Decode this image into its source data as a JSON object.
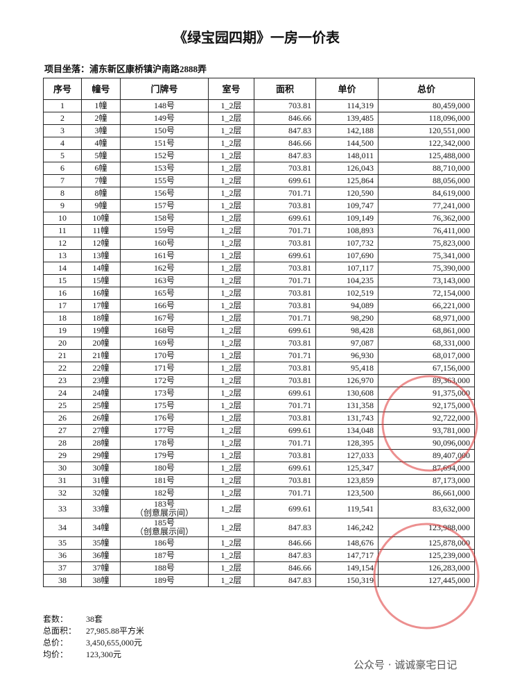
{
  "title": "《绿宝园四期》一房一价表",
  "location": {
    "label": "项目坐落：",
    "value": "浦东新区康桥镇沪南路2888弄"
  },
  "table": {
    "header": [
      "序号",
      "幢号",
      "门牌号",
      "室号",
      "面积",
      "单价",
      "总价"
    ],
    "rows": [
      [
        "1",
        "1幢",
        "148号",
        "1_2层",
        "703.81",
        "114,319",
        "80,459,000"
      ],
      [
        "2",
        "2幢",
        "149号",
        "1_2层",
        "846.66",
        "139,485",
        "118,096,000"
      ],
      [
        "3",
        "3幢",
        "150号",
        "1_2层",
        "847.83",
        "142,188",
        "120,551,000"
      ],
      [
        "4",
        "4幢",
        "151号",
        "1_2层",
        "846.66",
        "144,500",
        "122,342,000"
      ],
      [
        "5",
        "5幢",
        "152号",
        "1_2层",
        "847.83",
        "148,011",
        "125,488,000"
      ],
      [
        "6",
        "6幢",
        "153号",
        "1_2层",
        "703.81",
        "126,043",
        "88,710,000"
      ],
      [
        "7",
        "7幢",
        "155号",
        "1_2层",
        "699.61",
        "125,864",
        "88,056,000"
      ],
      [
        "8",
        "8幢",
        "156号",
        "1_2层",
        "701.71",
        "120,590",
        "84,619,000"
      ],
      [
        "9",
        "9幢",
        "157号",
        "1_2层",
        "703.81",
        "109,747",
        "77,241,000"
      ],
      [
        "10",
        "10幢",
        "158号",
        "1_2层",
        "699.61",
        "109,149",
        "76,362,000"
      ],
      [
        "11",
        "11幢",
        "159号",
        "1_2层",
        "701.71",
        "108,893",
        "76,411,000"
      ],
      [
        "12",
        "12幢",
        "160号",
        "1_2层",
        "703.81",
        "107,732",
        "75,823,000"
      ],
      [
        "13",
        "13幢",
        "161号",
        "1_2层",
        "699.61",
        "107,690",
        "75,341,000"
      ],
      [
        "14",
        "14幢",
        "162号",
        "1_2层",
        "703.81",
        "107,117",
        "75,390,000"
      ],
      [
        "15",
        "15幢",
        "163号",
        "1_2层",
        "701.71",
        "104,235",
        "73,143,000"
      ],
      [
        "16",
        "16幢",
        "165号",
        "1_2层",
        "703.81",
        "102,519",
        "72,154,000"
      ],
      [
        "17",
        "17幢",
        "166号",
        "1_2层",
        "703.81",
        "94,089",
        "66,221,000"
      ],
      [
        "18",
        "18幢",
        "167号",
        "1_2层",
        "701.71",
        "98,290",
        "68,971,000"
      ],
      [
        "19",
        "19幢",
        "168号",
        "1_2层",
        "699.61",
        "98,428",
        "68,861,000"
      ],
      [
        "20",
        "20幢",
        "169号",
        "1_2层",
        "703.81",
        "97,087",
        "68,331,000"
      ],
      [
        "21",
        "21幢",
        "170号",
        "1_2层",
        "701.71",
        "96,930",
        "68,017,000"
      ],
      [
        "22",
        "22幢",
        "171号",
        "1_2层",
        "703.81",
        "95,418",
        "67,156,000"
      ],
      [
        "23",
        "23幢",
        "172号",
        "1_2层",
        "703.81",
        "126,970",
        "89,363,000"
      ],
      [
        "24",
        "24幢",
        "173号",
        "1_2层",
        "699.61",
        "130,608",
        "91,375,000"
      ],
      [
        "25",
        "25幢",
        "175号",
        "1_2层",
        "701.71",
        "131,358",
        "92,175,000"
      ],
      [
        "26",
        "26幢",
        "176号",
        "1_2层",
        "703.81",
        "131,743",
        "92,722,000"
      ],
      [
        "27",
        "27幢",
        "177号",
        "1_2层",
        "699.61",
        "134,048",
        "93,781,000"
      ],
      [
        "28",
        "28幢",
        "178号",
        "1_2层",
        "701.71",
        "128,395",
        "90,096,000"
      ],
      [
        "29",
        "29幢",
        "179号",
        "1_2层",
        "703.81",
        "127,033",
        "89,407,000"
      ],
      [
        "30",
        "30幢",
        "180号",
        "1_2层",
        "699.61",
        "125,347",
        "87,694,000"
      ],
      [
        "31",
        "31幢",
        "181号",
        "1_2层",
        "703.81",
        "123,859",
        "87,173,000"
      ],
      [
        "32",
        "32幢",
        "182号",
        "1_2层",
        "701.71",
        "123,500",
        "86,661,000"
      ],
      [
        "33",
        "33幢",
        [
          "183号",
          "（创意展示间）"
        ],
        "1_2层",
        "699.61",
        "119,541",
        "83,632,000"
      ],
      [
        "34",
        "34幢",
        [
          "185号",
          "（创意展示间）"
        ],
        "1_2层",
        "847.83",
        "146,242",
        "123,988,000"
      ],
      [
        "35",
        "35幢",
        "186号",
        "1_2层",
        "846.66",
        "148,676",
        "125,878,000"
      ],
      [
        "36",
        "36幢",
        "187号",
        "1_2层",
        "847.83",
        "147,717",
        "125,239,000"
      ],
      [
        "37",
        "37幢",
        "188号",
        "1_2层",
        "846.66",
        "149,154",
        "126,283,000"
      ],
      [
        "38",
        "38幢",
        "189号",
        "1_2层",
        "847.83",
        "150,319",
        "127,445,000"
      ]
    ]
  },
  "summary": [
    [
      "套数：",
      "38套"
    ],
    [
      "总面积：",
      "27,985.88平方米"
    ],
    [
      "总价：",
      "3,450,655,000元"
    ],
    [
      "均价：",
      "123,300元"
    ]
  ],
  "watermark": "公众号 · 诚诚豪宅日记"
}
